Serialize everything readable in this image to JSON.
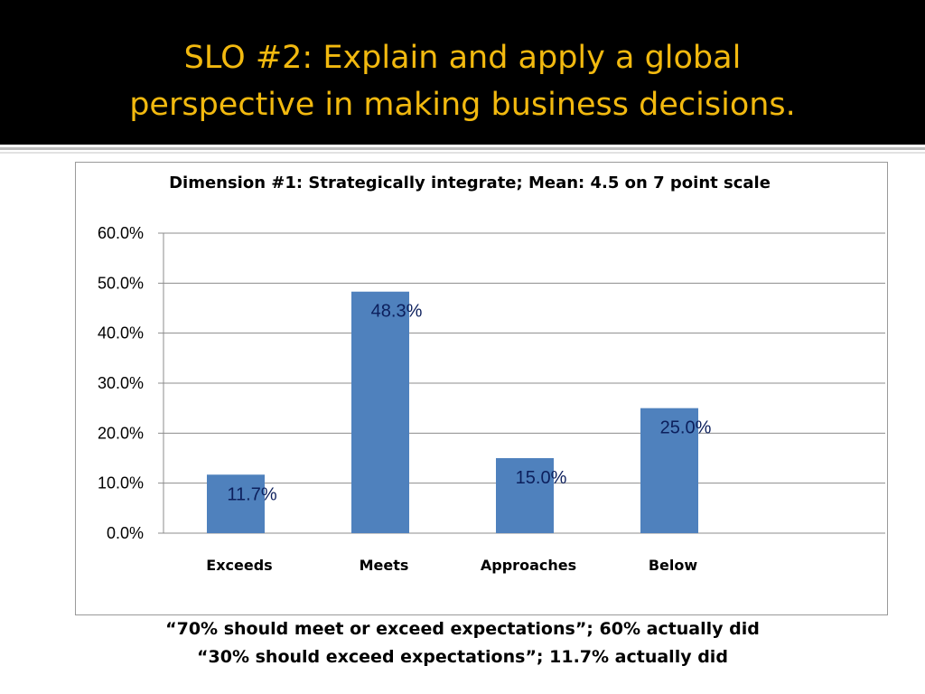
{
  "slide": {
    "title_lines": [
      "SLO #2: Explain and apply a global",
      "perspective in making business decisions."
    ],
    "caption_lines": [
      "“70% should meet or exceed expectations”; 60% actually did",
      "“30% should exceed expectations”; 11.7% actually did"
    ],
    "colors": {
      "title": "#f2b90f",
      "title_band": "#000000",
      "bar": "#4f81bd",
      "data_label": "#0c1f5c"
    }
  },
  "chart_data": {
    "type": "bar",
    "title": "Dimension #1: Strategically integrate; Mean: 4.5 on 7 point scale",
    "categories": [
      "Exceeds",
      "Meets",
      "Approaches",
      "Below"
    ],
    "values": [
      11.7,
      48.3,
      15.0,
      25.0
    ],
    "data_labels": [
      "11.7%",
      "48.3%",
      "15.0%",
      "25.0%"
    ],
    "y_ticks": [
      0,
      10,
      20,
      30,
      40,
      50,
      60
    ],
    "y_tick_labels": [
      "0.0%",
      "10.0%",
      "20.0%",
      "30.0%",
      "40.0%",
      "50.0%",
      "60.0%"
    ],
    "ylim": [
      0,
      60
    ],
    "grid": true,
    "legend": "none",
    "xlabel": "",
    "ylabel": ""
  }
}
